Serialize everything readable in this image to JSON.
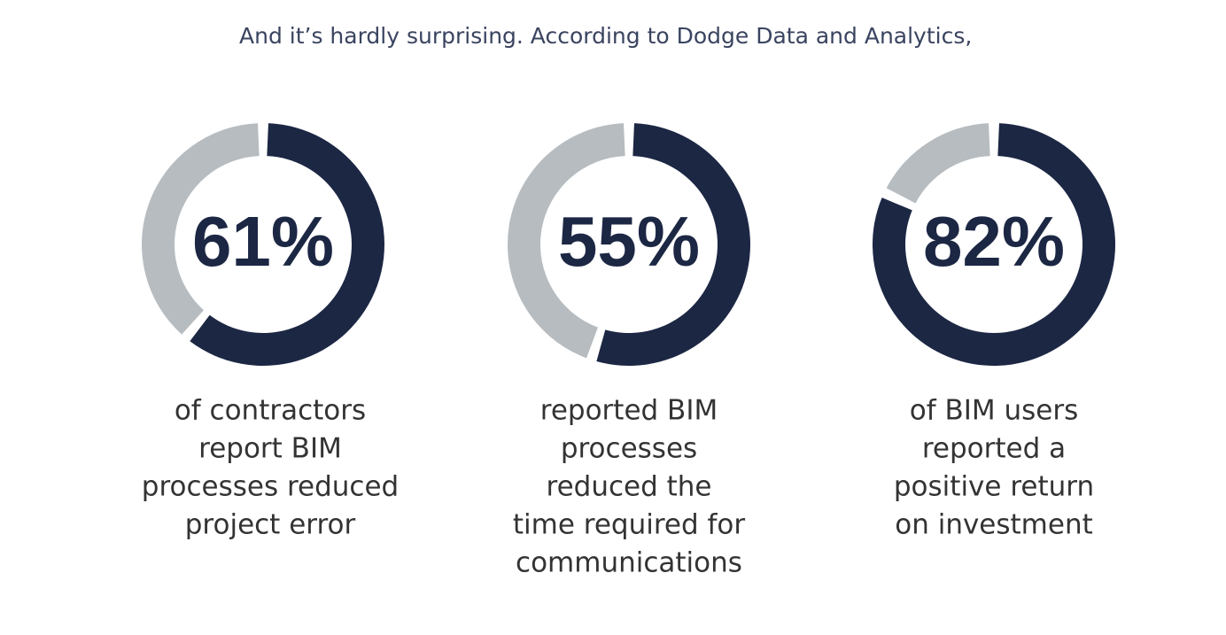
{
  "intro": "And it’s hardly surprising. According to Dodge Data and Analytics,",
  "chart_data": [
    {
      "type": "donut",
      "values": [
        61
      ],
      "value_labels": [
        "61%"
      ],
      "color": "#1c2744",
      "track_color": "#b6bcc0",
      "caption_lines": [
        "of contractors",
        "report BIM",
        "processes reduced",
        "project error"
      ]
    },
    {
      "type": "donut",
      "values": [
        55
      ],
      "value_labels": [
        "55%"
      ],
      "color": "#1c2744",
      "track_color": "#b6bcc0",
      "caption_lines": [
        "reported BIM",
        "processes",
        "reduced the",
        "time required for",
        "communications"
      ]
    },
    {
      "type": "donut",
      "values": [
        82
      ],
      "value_labels": [
        "82%"
      ],
      "color": "#1c2744",
      "track_color": "#b6bcc0",
      "caption_lines": [
        "of BIM users",
        "reported a",
        "positive return",
        "on investment"
      ]
    }
  ]
}
